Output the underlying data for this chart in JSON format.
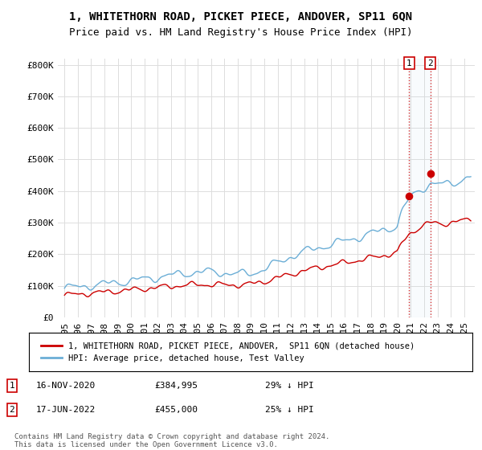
{
  "title": "1, WHITETHORN ROAD, PICKET PIECE, ANDOVER, SP11 6QN",
  "subtitle": "Price paid vs. HM Land Registry's House Price Index (HPI)",
  "ylim": [
    0,
    820000
  ],
  "yticks": [
    0,
    100000,
    200000,
    300000,
    400000,
    500000,
    600000,
    700000,
    800000
  ],
  "ytick_labels": [
    "£0",
    "£100K",
    "£200K",
    "£300K",
    "£400K",
    "£500K",
    "£600K",
    "£700K",
    "£800K"
  ],
  "xlim_start": 1994.5,
  "xlim_end": 2025.8,
  "hpi_color": "#6baed6",
  "price_color": "#cc0000",
  "marker1_date": 2020.88,
  "marker1_price": 384995,
  "marker2_date": 2022.46,
  "marker2_price": 455000,
  "legend_price_label": "1, WHITETHORN ROAD, PICKET PIECE, ANDOVER,  SP11 6QN (detached house)",
  "legend_hpi_label": "HPI: Average price, detached house, Test Valley",
  "annotation1_date": "16-NOV-2020",
  "annotation1_price": "£384,995",
  "annotation1_hpi": "29% ↓ HPI",
  "annotation2_date": "17-JUN-2022",
  "annotation2_price": "£455,000",
  "annotation2_hpi": "25% ↓ HPI",
  "footer": "Contains HM Land Registry data © Crown copyright and database right 2024.\nThis data is licensed under the Open Government Licence v3.0.",
  "background_color": "#ffffff",
  "grid_color": "#dddddd",
  "title_fontsize": 10,
  "subtitle_fontsize": 9,
  "tick_fontsize": 8
}
